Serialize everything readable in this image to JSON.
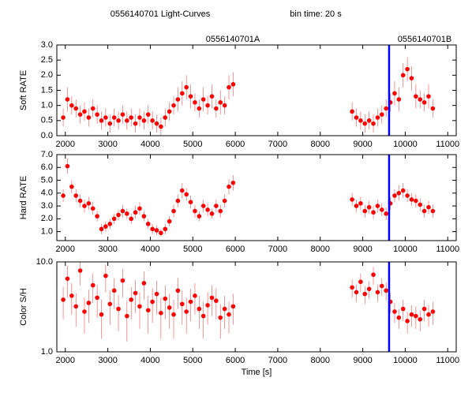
{
  "chart_data": [
    {
      "type": "scatter",
      "title": "0556140701 Light-Curves",
      "subtitle": "bin time: 20 s",
      "annotations": [
        "0556140701A",
        "0556140701B"
      ],
      "ylabel": "Soft RATE",
      "color": "#ff0000",
      "marker_x": 9620,
      "marker_color": "#0000ff",
      "x": [
        1950,
        2050,
        2150,
        2250,
        2350,
        2450,
        2550,
        2650,
        2750,
        2850,
        2950,
        3050,
        3150,
        3250,
        3350,
        3450,
        3550,
        3650,
        3750,
        3850,
        3950,
        4050,
        4150,
        4250,
        4350,
        4450,
        4550,
        4650,
        4750,
        4850,
        4950,
        5050,
        5150,
        5250,
        5350,
        5450,
        5550,
        5650,
        5750,
        5850,
        5950,
        8750,
        8850,
        8950,
        9050,
        9150,
        9250,
        9350,
        9450,
        9550,
        9650,
        9750,
        9850,
        9950,
        10050,
        10150,
        10250,
        10350,
        10450,
        10550,
        10650
      ],
      "values": [
        0.6,
        1.2,
        1.0,
        0.9,
        0.7,
        0.8,
        0.6,
        0.9,
        0.7,
        0.5,
        0.6,
        0.4,
        0.6,
        0.5,
        0.7,
        0.5,
        0.6,
        0.4,
        0.6,
        0.5,
        0.7,
        0.5,
        0.4,
        0.3,
        0.6,
        0.8,
        1.0,
        1.2,
        1.4,
        1.6,
        1.3,
        1.1,
        0.9,
        1.2,
        1.0,
        1.3,
        0.9,
        1.1,
        1.0,
        1.6,
        1.7,
        0.8,
        0.6,
        0.5,
        0.4,
        0.5,
        0.4,
        0.6,
        0.7,
        0.9,
        1.1,
        1.4,
        1.2,
        2.0,
        2.2,
        1.9,
        1.3,
        1.2,
        1.1,
        1.3,
        0.9
      ],
      "errors": [
        0.3,
        0.4,
        0.3,
        0.3,
        0.3,
        0.3,
        0.3,
        0.3,
        0.3,
        0.3,
        0.3,
        0.3,
        0.3,
        0.3,
        0.3,
        0.3,
        0.3,
        0.3,
        0.3,
        0.3,
        0.3,
        0.3,
        0.3,
        0.3,
        0.3,
        0.3,
        0.3,
        0.4,
        0.4,
        0.4,
        0.4,
        0.3,
        0.3,
        0.4,
        0.3,
        0.4,
        0.3,
        0.4,
        0.3,
        0.4,
        0.4,
        0.3,
        0.3,
        0.3,
        0.3,
        0.3,
        0.3,
        0.3,
        0.3,
        0.3,
        0.3,
        0.4,
        0.4,
        0.4,
        0.4,
        0.4,
        0.4,
        0.3,
        0.3,
        0.4,
        0.3
      ],
      "xlim": [
        1800,
        11200
      ],
      "xticks": [
        2000,
        3000,
        4000,
        5000,
        6000,
        7000,
        8000,
        9000,
        10000,
        11000
      ],
      "ylim": [
        0,
        3
      ],
      "yticks": [
        {
          "value": 0,
          "label": "0.0"
        },
        {
          "value": 0.5,
          "label": "0.5"
        },
        {
          "value": 1,
          "label": "1.0"
        },
        {
          "value": 1.5,
          "label": "1.5"
        },
        {
          "value": 2,
          "label": "2.0"
        },
        {
          "value": 2.5,
          "label": "2.5"
        },
        {
          "value": 3,
          "label": "3.0"
        }
      ]
    },
    {
      "type": "scatter",
      "ylabel": "Hard RATE",
      "color": "#ff0000",
      "marker_x": 9620,
      "marker_color": "#0000ff",
      "x": [
        1950,
        2050,
        2150,
        2250,
        2350,
        2450,
        2550,
        2650,
        2750,
        2850,
        2950,
        3050,
        3150,
        3250,
        3350,
        3450,
        3550,
        3650,
        3750,
        3850,
        3950,
        4050,
        4150,
        4250,
        4350,
        4450,
        4550,
        4650,
        4750,
        4850,
        4950,
        5050,
        5150,
        5250,
        5350,
        5450,
        5550,
        5650,
        5750,
        5850,
        5950,
        8750,
        8850,
        8950,
        9050,
        9150,
        9250,
        9350,
        9450,
        9550,
        9650,
        9750,
        9850,
        9950,
        10050,
        10150,
        10250,
        10350,
        10450,
        10550,
        10650
      ],
      "values": [
        3.8,
        6.1,
        4.5,
        3.8,
        3.4,
        3.0,
        3.2,
        2.8,
        2.2,
        1.2,
        1.4,
        1.6,
        2.0,
        2.3,
        2.6,
        2.4,
        2.0,
        2.5,
        2.8,
        2.2,
        1.6,
        1.2,
        1.1,
        0.9,
        1.2,
        1.8,
        2.6,
        3.4,
        4.2,
        3.9,
        3.3,
        2.6,
        2.2,
        3.0,
        2.7,
        2.4,
        3.0,
        2.6,
        3.4,
        4.5,
        4.8,
        3.5,
        3.0,
        3.2,
        2.6,
        2.9,
        2.5,
        3.0,
        2.7,
        2.4,
        3.2,
        3.8,
        4.0,
        4.2,
        3.8,
        3.5,
        3.4,
        3.1,
        2.6,
        2.9,
        2.6
      ],
      "errors": [
        0.5,
        0.6,
        0.5,
        0.5,
        0.5,
        0.5,
        0.5,
        0.5,
        0.4,
        0.4,
        0.4,
        0.4,
        0.4,
        0.4,
        0.5,
        0.4,
        0.4,
        0.5,
        0.5,
        0.4,
        0.4,
        0.4,
        0.4,
        0.3,
        0.4,
        0.4,
        0.5,
        0.5,
        0.6,
        0.5,
        0.5,
        0.5,
        0.4,
        0.5,
        0.5,
        0.4,
        0.5,
        0.5,
        0.5,
        0.6,
        0.6,
        0.5,
        0.5,
        0.5,
        0.5,
        0.5,
        0.5,
        0.5,
        0.5,
        0.5,
        0.5,
        0.5,
        0.6,
        0.6,
        0.5,
        0.5,
        0.5,
        0.5,
        0.5,
        0.5,
        0.5
      ],
      "xlim": [
        1800,
        11200
      ],
      "xticks": [
        2000,
        3000,
        4000,
        5000,
        6000,
        7000,
        8000,
        9000,
        10000,
        11000
      ],
      "ylim": [
        0.3,
        7
      ],
      "yticks": [
        {
          "value": 1,
          "label": "1.0"
        },
        {
          "value": 2,
          "label": "2.0"
        },
        {
          "value": 3,
          "label": "3.0"
        },
        {
          "value": 4,
          "label": "4.0"
        },
        {
          "value": 5,
          "label": "5.0"
        },
        {
          "value": 6,
          "label": "6.0"
        },
        {
          "value": 7,
          "label": "7.0"
        }
      ]
    },
    {
      "type": "scatter",
      "ylabel": "Color S/H",
      "xlabel": "Time [s]",
      "log_y": true,
      "color": "#ff0000",
      "marker_x": 9620,
      "marker_color": "#0000ff",
      "x": [
        1950,
        2050,
        2150,
        2250,
        2350,
        2450,
        2550,
        2650,
        2750,
        2850,
        2950,
        3050,
        3150,
        3250,
        3350,
        3450,
        3550,
        3650,
        3750,
        3850,
        3950,
        4050,
        4150,
        4250,
        4350,
        4450,
        4550,
        4650,
        4750,
        4850,
        4950,
        5050,
        5150,
        5250,
        5350,
        5450,
        5550,
        5650,
        5750,
        5850,
        5950,
        8750,
        8850,
        8950,
        9050,
        9150,
        9250,
        9350,
        9450,
        9550,
        9650,
        9750,
        9850,
        9950,
        10050,
        10150,
        10250,
        10350,
        10450,
        10550,
        10650
      ],
      "values": [
        3.8,
        6.5,
        4.2,
        3.2,
        8.0,
        2.8,
        3.5,
        5.5,
        4.0,
        2.6,
        7.0,
        3.4,
        4.8,
        3.0,
        6.2,
        2.5,
        3.8,
        4.5,
        3.2,
        5.8,
        2.9,
        3.6,
        4.4,
        2.7,
        3.9,
        3.1,
        2.6,
        4.8,
        3.4,
        2.8,
        3.6,
        4.2,
        3.0,
        2.5,
        3.3,
        4.0,
        3.7,
        2.4,
        3.0,
        2.6,
        3.2,
        5.2,
        4.6,
        6.0,
        4.4,
        5.0,
        7.2,
        4.6,
        5.4,
        4.8,
        3.6,
        2.8,
        2.4,
        3.0,
        2.2,
        2.6,
        2.5,
        2.3,
        3.0,
        2.6,
        2.8
      ],
      "errors": [
        1.5,
        2.5,
        1.6,
        1.3,
        2.5,
        1.2,
        1.4,
        2.0,
        1.6,
        1.2,
        2.4,
        1.4,
        1.8,
        1.3,
        2.2,
        1.2,
        1.5,
        1.8,
        1.4,
        2.0,
        1.3,
        1.5,
        1.8,
        1.3,
        1.6,
        1.3,
        1.2,
        1.8,
        1.4,
        1.2,
        1.4,
        1.6,
        1.2,
        1.1,
        1.3,
        1.5,
        1.4,
        1.0,
        1.2,
        1.0,
        1.2,
        1.2,
        1.0,
        1.4,
        1.0,
        1.1,
        1.6,
        1.0,
        1.2,
        1.1,
        0.9,
        0.7,
        0.6,
        0.8,
        0.6,
        0.7,
        0.7,
        0.6,
        0.8,
        0.7,
        0.8
      ],
      "xlim": [
        1800,
        11200
      ],
      "xticks": [
        2000,
        3000,
        4000,
        5000,
        6000,
        7000,
        8000,
        9000,
        10000,
        11000
      ],
      "ylim": [
        1,
        10
      ],
      "yticks": [
        {
          "value": 1,
          "label": "1.0"
        },
        {
          "value": 10,
          "label": "10.0"
        }
      ]
    }
  ]
}
